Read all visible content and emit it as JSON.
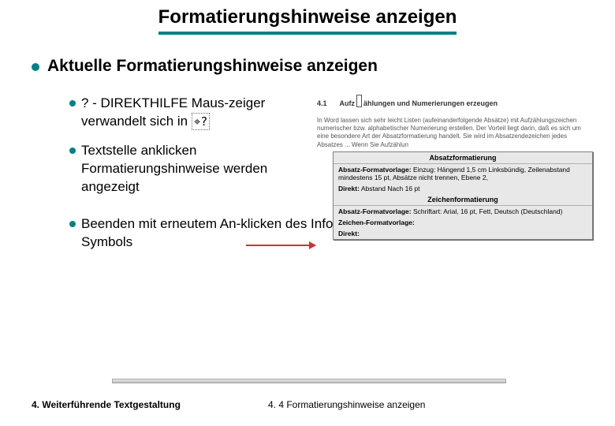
{
  "title": "Formatierungshinweise anzeigen",
  "heading": "Aktuelle Formatierungshinweise anzeigen",
  "bullets": {
    "b1_pre": "? - DIREKTHILFE Maus-zeiger verwandelt sich in",
    "b1_cursor": "⌖?",
    "b2": "Textstelle anklicken Formatierungshinweise werden angezeigt",
    "b3": "Beenden mit erneutem An-klicken des Info-Symbols"
  },
  "sample": {
    "sec_num": "4.1",
    "sec_title": "Aufzählungen und Numerierungen erzeugen",
    "para": "In Word lassen sich sehr leicht Listen (aufeinanderfolgende Absätze) mit Aufzählungszeichen numerischer bzw. alphabetischer Numerierung erstellen. Der Vorteil liegt darin, daß es sich um eine besondere Art der Absatzformatierung handelt. Sie wird im Absatzendezeichen jedes Absatzes ... Wenn Sie Aufzählun"
  },
  "popup": {
    "hdr1": "Absatzformatierung",
    "row1_lbl": "Absatz-Formatvorlage:",
    "row1_val": "Einzug: Hängend 1,5 cm Linksbündig, Zeilenabstand mindestens 15 pt, Absätze nicht trennen, Ebene 2,",
    "row2_lbl": "Direkt:",
    "row2_val": "Abstand Nach 16 pt",
    "hdr2": "Zeichenformatierung",
    "row3_lbl": "Absatz-Formatvorlage:",
    "row3_val": "Schriftart: Arial, 16 pt, Fett, Deutsch (Deutschland)",
    "row4_lbl": "Zeichen-Formatvorlage:",
    "row5_lbl": "Direkt:"
  },
  "footer": {
    "left": "4. Weiterführende Textgestaltung",
    "right": "4. 4 Formatierungshinweise anzeigen"
  },
  "colors": {
    "accent": "#008080",
    "arrow": "#cc3333",
    "popup_bg": "#e8e8e8"
  }
}
